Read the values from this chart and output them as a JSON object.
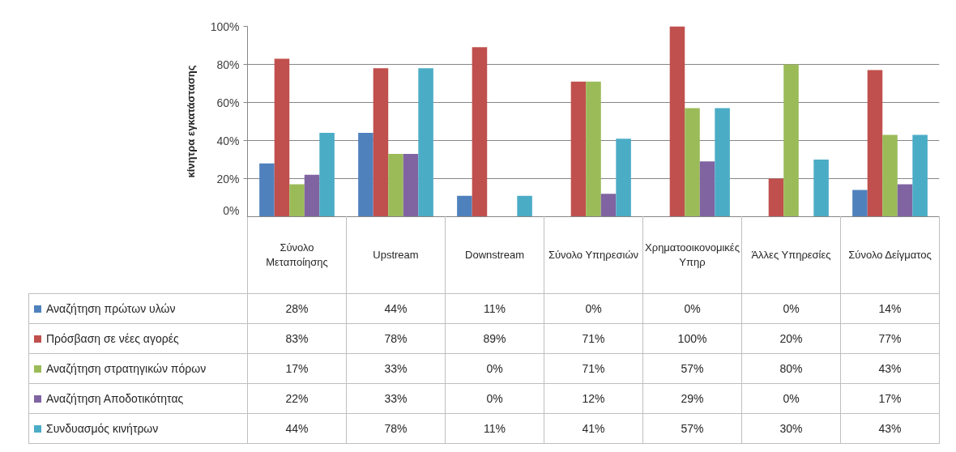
{
  "chart_data": {
    "type": "bar",
    "ylabel": "κίνητρα εγκατάστασης",
    "categories": [
      "Σύνολο Μεταποίησης",
      "Upstream",
      "Downstream",
      "Σύνολο Υπηρεσιών",
      "Χρηματοοικονομικές Υπηρ",
      "Άλλες Υπηρεσίες",
      "Σύνολο Δείγματος"
    ],
    "series": [
      {
        "name": "Αναζήτηση πρώτων υλών",
        "color": "#4f81bd",
        "values": [
          28,
          44,
          11,
          0,
          0,
          0,
          14
        ],
        "value_labels": [
          "28%",
          "44%",
          "11%",
          "0%",
          "0%",
          "0%",
          "14%"
        ]
      },
      {
        "name": "Πρόσβαση σε νέες αγορές",
        "color": "#c0504d",
        "values": [
          83,
          78,
          89,
          71,
          100,
          20,
          77
        ],
        "value_labels": [
          "83%",
          "78%",
          "89%",
          "71%",
          "100%",
          "20%",
          "77%"
        ]
      },
      {
        "name": "Αναζήτηση στρατηγικών πόρων",
        "color": "#9bbb59",
        "values": [
          17,
          33,
          0,
          71,
          57,
          80,
          43
        ],
        "value_labels": [
          "17%",
          "33%",
          "0%",
          "71%",
          "57%",
          "80%",
          "43%"
        ]
      },
      {
        "name": "Αναζήτηση Αποδοτικότητας",
        "color": "#8064a2",
        "values": [
          22,
          33,
          0,
          12,
          29,
          0,
          17
        ],
        "value_labels": [
          "22%",
          "33%",
          "0%",
          "12%",
          "29%",
          "0%",
          "17%"
        ]
      },
      {
        "name": "Συνδυασμός κινήτρων",
        "color": "#4bacc6",
        "values": [
          44,
          78,
          11,
          41,
          57,
          30,
          43
        ],
        "value_labels": [
          "44%",
          "78%",
          "11%",
          "41%",
          "57%",
          "30%",
          "43%"
        ]
      }
    ],
    "ylim": [
      0,
      100
    ],
    "yticks": [
      {
        "value": 0,
        "label": "0%"
      },
      {
        "value": 20,
        "label": "20%"
      },
      {
        "value": 40,
        "label": "40%"
      },
      {
        "value": 60,
        "label": "60%"
      },
      {
        "value": 80,
        "label": "80%"
      },
      {
        "value": 100,
        "label": "100%"
      }
    ],
    "grid": "y",
    "legend": "bottom"
  }
}
